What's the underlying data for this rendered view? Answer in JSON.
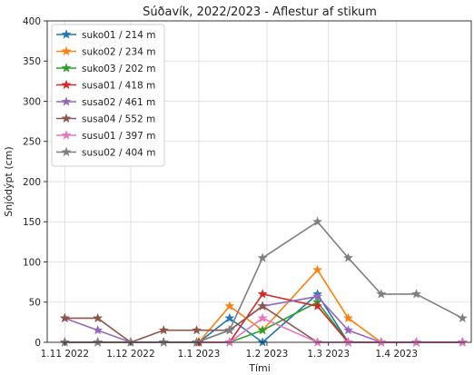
{
  "chart_data": {
    "type": "line",
    "title": "Súðavík, 2022/2023 - Aflestur af stikum",
    "xlabel": "Tími",
    "ylabel": "Snjódýpt (cm)",
    "xlim": [
      "2022-10-24",
      "2023-05-05"
    ],
    "ylim": [
      0,
      400
    ],
    "x_ticks": [
      {
        "date": "2022-11-01",
        "label": "1.11 2022"
      },
      {
        "date": "2022-12-01",
        "label": "1.12 2022"
      },
      {
        "date": "2023-01-01",
        "label": "1.1 2023"
      },
      {
        "date": "2023-02-01",
        "label": "1.2 2023"
      },
      {
        "date": "2023-03-01",
        "label": "1.3 2023"
      },
      {
        "date": "2023-04-01",
        "label": "1.4 2023"
      }
    ],
    "y_ticks": [
      0,
      50,
      100,
      150,
      200,
      250,
      300,
      350,
      400
    ],
    "grid": true,
    "legend_position": "top-left",
    "marker": "star",
    "series": [
      {
        "name": "suko01 / 214 m",
        "color": "#1f77b4",
        "x": [
          "2022-11-01",
          "2022-11-16",
          "2022-12-01",
          "2022-12-16",
          "2022-12-31",
          "2023-01-01",
          "2023-01-15",
          "2023-01-30",
          "2023-02-24",
          "2023-03-10",
          "2023-03-25",
          "2023-04-10",
          "2023-05-01"
        ],
        "y": [
          0,
          0,
          0,
          0,
          0,
          0,
          30,
          0,
          60,
          0,
          0,
          0,
          0
        ]
      },
      {
        "name": "suko02 / 234 m",
        "color": "#ff7f0e",
        "x": [
          "2022-11-01",
          "2022-11-16",
          "2022-12-01",
          "2022-12-16",
          "2022-12-31",
          "2023-01-01",
          "2023-01-15",
          "2023-01-30",
          "2023-02-24",
          "2023-03-10",
          "2023-03-25",
          "2023-04-10",
          "2023-05-01"
        ],
        "y": [
          0,
          0,
          0,
          0,
          0,
          0,
          45,
          15,
          90,
          30,
          0,
          0,
          0
        ]
      },
      {
        "name": "suko03 / 202 m",
        "color": "#2ca02c",
        "x": [
          "2022-11-01",
          "2022-11-16",
          "2022-12-01",
          "2022-12-16",
          "2022-12-31",
          "2023-01-01",
          "2023-01-15",
          "2023-01-30",
          "2023-02-24",
          "2023-03-10",
          "2023-03-25",
          "2023-04-10",
          "2023-05-01"
        ],
        "y": [
          0,
          0,
          0,
          0,
          0,
          0,
          0,
          15,
          50,
          0,
          0,
          0,
          0
        ]
      },
      {
        "name": "susa01 / 418 m",
        "color": "#d62728",
        "x": [
          "2022-11-01",
          "2022-11-16",
          "2022-12-01",
          "2022-12-16",
          "2022-12-31",
          "2023-01-01",
          "2023-01-15",
          "2023-01-30",
          "2023-02-24",
          "2023-03-10",
          "2023-03-25",
          "2023-04-10",
          "2023-05-01"
        ],
        "y": [
          0,
          0,
          0,
          0,
          0,
          0,
          0,
          60,
          45,
          0,
          0,
          0,
          0
        ]
      },
      {
        "name": "susa02 / 461 m",
        "color": "#9467bd",
        "x": [
          "2022-11-01",
          "2022-11-16",
          "2022-12-01",
          "2022-12-16",
          "2022-12-31",
          "2023-01-15",
          "2023-01-30",
          "2023-02-24",
          "2023-03-10",
          "2023-03-25",
          "2023-04-10",
          "2023-05-01"
        ],
        "y": [
          30,
          15,
          0,
          0,
          0,
          15,
          45,
          57,
          15,
          0,
          0,
          0
        ]
      },
      {
        "name": "susa04 / 552 m",
        "color": "#8c564b",
        "x": [
          "2022-11-01",
          "2022-11-16",
          "2022-12-01",
          "2022-12-16",
          "2022-12-31",
          "2023-01-15",
          "2023-01-30",
          "2023-02-24",
          "2023-03-10",
          "2023-03-25",
          "2023-04-10",
          "2023-05-01"
        ],
        "y": [
          30,
          30,
          0,
          15,
          15,
          15,
          45,
          0,
          0,
          0,
          0,
          0
        ]
      },
      {
        "name": "susu01 / 397 m",
        "color": "#e377c2",
        "x": [
          "2022-11-01",
          "2022-11-16",
          "2022-12-01",
          "2022-12-16",
          "2022-12-31",
          "2023-01-15",
          "2023-01-30",
          "2023-02-24",
          "2023-03-10",
          "2023-03-25",
          "2023-04-10",
          "2023-05-01"
        ],
        "y": [
          0,
          0,
          0,
          0,
          0,
          0,
          30,
          0,
          0,
          0,
          0,
          0
        ]
      },
      {
        "name": "susu02 / 404 m",
        "color": "#7f7f7f",
        "x": [
          "2022-11-01",
          "2022-11-16",
          "2022-12-01",
          "2022-12-16",
          "2022-12-31",
          "2023-01-15",
          "2023-01-30",
          "2023-02-24",
          "2023-03-10",
          "2023-03-25",
          "2023-04-10",
          "2023-05-01"
        ],
        "y": [
          0,
          0,
          0,
          0,
          0,
          15,
          105,
          150,
          105,
          60,
          60,
          30
        ]
      }
    ]
  }
}
